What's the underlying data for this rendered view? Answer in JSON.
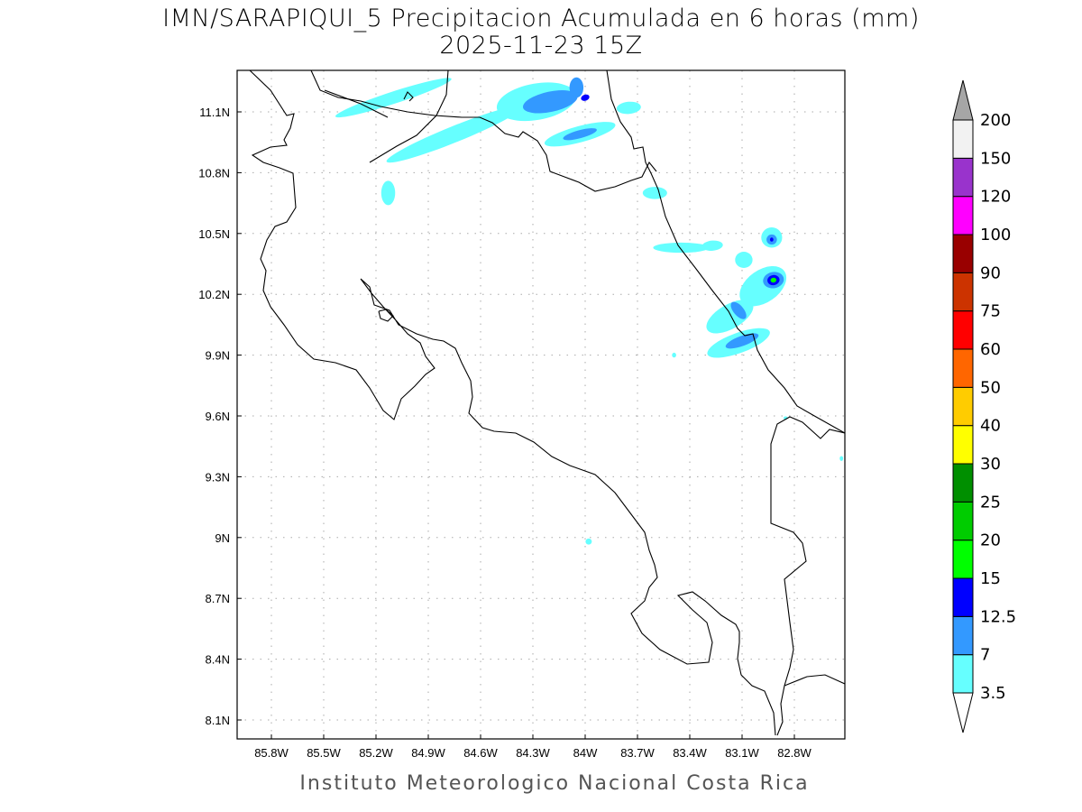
{
  "title": "IMN/SARAPIQUI_5 Precipitacion Acumulada en 6 horas (mm)",
  "subtitle": "2025-11-23 15Z",
  "credit": "Instituto Meteorologico Nacional Costa Rica",
  "map": {
    "lon_range": [
      -86.0,
      -82.52
    ],
    "lat_range": [
      8.02,
      11.3
    ],
    "lon_ticks": [
      {
        "v": -85.8,
        "label": "85.8W"
      },
      {
        "v": -85.5,
        "label": "85.5W"
      },
      {
        "v": -85.2,
        "label": "85.2W"
      },
      {
        "v": -84.9,
        "label": "84.9W"
      },
      {
        "v": -84.6,
        "label": "84.6W"
      },
      {
        "v": -84.3,
        "label": "84.3W"
      },
      {
        "v": -84.0,
        "label": "84W"
      },
      {
        "v": -83.7,
        "label": "83.7W"
      },
      {
        "v": -83.4,
        "label": "83.4W"
      },
      {
        "v": -83.1,
        "label": "83.1W"
      },
      {
        "v": -82.8,
        "label": "82.8W"
      }
    ],
    "lat_ticks": [
      {
        "v": 11.1,
        "label": "11.1N"
      },
      {
        "v": 10.8,
        "label": "10.8N"
      },
      {
        "v": 10.5,
        "label": "10.5N"
      },
      {
        "v": 10.2,
        "label": "10.2N"
      },
      {
        "v": 9.9,
        "label": "9.9N"
      },
      {
        "v": 9.6,
        "label": "9.6N"
      },
      {
        "v": 9.3,
        "label": "9.3N"
      },
      {
        "v": 9.0,
        "label": "9N"
      },
      {
        "v": 8.7,
        "label": "8.7N"
      },
      {
        "v": 8.4,
        "label": "8.4N"
      },
      {
        "v": 8.1,
        "label": "8.1N"
      }
    ]
  },
  "colorbar": {
    "levels": [
      "3.5",
      "7",
      "12.5",
      "15",
      "20",
      "25",
      "30",
      "40",
      "50",
      "60",
      "75",
      "90",
      "100",
      "120",
      "150",
      "200"
    ],
    "colors": [
      "#66ffff",
      "#3399ff",
      "#0000ff",
      "#00ff00",
      "#00cc00",
      "#008f00",
      "#ffff00",
      "#ffcc00",
      "#ff6600",
      "#ff0000",
      "#cc3300",
      "#990000",
      "#ff00ff",
      "#9933cc",
      "#f2f2f2"
    ],
    "over_color": "#a6a6a6",
    "under_color": "#ffffff"
  },
  "precip_cells": [
    {
      "lon": -85.1,
      "lat": 11.17,
      "rx": 0.35,
      "ry": 0.03,
      "rot": -18,
      "level": 0
    },
    {
      "lon": -84.75,
      "lat": 10.99,
      "rx": 0.42,
      "ry": 0.04,
      "rot": -22,
      "level": 0
    },
    {
      "lon": -85.13,
      "lat": 10.7,
      "rx": 0.04,
      "ry": 0.06,
      "rot": 0,
      "level": 0
    },
    {
      "lon": -84.28,
      "lat": 11.15,
      "rx": 0.23,
      "ry": 0.09,
      "rot": -10,
      "level": 0
    },
    {
      "lon": -84.2,
      "lat": 11.15,
      "rx": 0.16,
      "ry": 0.05,
      "rot": -12,
      "level": 1
    },
    {
      "lon": -84.0,
      "lat": 11.17,
      "rx": 0.025,
      "ry": 0.015,
      "rot": -20,
      "level": 2
    },
    {
      "lon": -84.05,
      "lat": 11.22,
      "rx": 0.04,
      "ry": 0.05,
      "rot": 0,
      "level": 1
    },
    {
      "lon": -84.03,
      "lat": 10.99,
      "rx": 0.21,
      "ry": 0.04,
      "rot": -15,
      "level": 0
    },
    {
      "lon": -84.03,
      "lat": 10.99,
      "rx": 0.1,
      "ry": 0.02,
      "rot": -15,
      "level": 1
    },
    {
      "lon": -83.75,
      "lat": 11.12,
      "rx": 0.07,
      "ry": 0.03,
      "rot": -5,
      "level": 0
    },
    {
      "lon": -83.6,
      "lat": 10.7,
      "rx": 0.07,
      "ry": 0.03,
      "rot": 0,
      "level": 0
    },
    {
      "lon": -83.45,
      "lat": 10.43,
      "rx": 0.16,
      "ry": 0.025,
      "rot": 0,
      "level": 0
    },
    {
      "lon": -83.27,
      "lat": 10.44,
      "rx": 0.06,
      "ry": 0.025,
      "rot": -5,
      "level": 0
    },
    {
      "lon": -82.93,
      "lat": 10.48,
      "rx": 0.06,
      "ry": 0.05,
      "rot": 0,
      "level": 0
    },
    {
      "lon": -82.93,
      "lat": 10.47,
      "rx": 0.03,
      "ry": 0.025,
      "rot": 0,
      "level": 1
    },
    {
      "lon": -82.93,
      "lat": 10.47,
      "rx": 0.01,
      "ry": 0.01,
      "rot": 0,
      "level": 2
    },
    {
      "lon": -83.09,
      "lat": 10.37,
      "rx": 0.05,
      "ry": 0.04,
      "rot": 0,
      "level": 0
    },
    {
      "lon": -82.98,
      "lat": 10.24,
      "rx": 0.15,
      "ry": 0.08,
      "rot": -35,
      "level": 0
    },
    {
      "lon": -82.92,
      "lat": 10.27,
      "rx": 0.06,
      "ry": 0.04,
      "rot": -10,
      "level": 1
    },
    {
      "lon": -82.92,
      "lat": 10.27,
      "rx": 0.035,
      "ry": 0.025,
      "rot": -10,
      "level": 2
    },
    {
      "lon": -82.92,
      "lat": 10.27,
      "rx": 0.017,
      "ry": 0.012,
      "rot": -10,
      "level": 3
    },
    {
      "lon": -83.17,
      "lat": 10.09,
      "rx": 0.15,
      "ry": 0.06,
      "rot": -30,
      "level": 0
    },
    {
      "lon": -83.12,
      "lat": 10.12,
      "rx": 0.06,
      "ry": 0.025,
      "rot": 50,
      "level": 1
    },
    {
      "lon": -83.12,
      "lat": 9.96,
      "rx": 0.19,
      "ry": 0.05,
      "rot": -20,
      "level": 0
    },
    {
      "lon": -83.1,
      "lat": 9.97,
      "rx": 0.1,
      "ry": 0.025,
      "rot": -20,
      "level": 1
    },
    {
      "lon": -83.49,
      "lat": 9.9,
      "rx": 0.012,
      "ry": 0.012,
      "rot": 0,
      "level": 0
    },
    {
      "lon": -83.98,
      "lat": 8.98,
      "rx": 0.018,
      "ry": 0.015,
      "rot": 0,
      "level": 0
    },
    {
      "lon": -82.85,
      "lat": 9.59,
      "rx": 0.012,
      "ry": 0.008,
      "rot": 0,
      "level": 0
    },
    {
      "lon": -82.53,
      "lat": 9.39,
      "rx": 0.01,
      "ry": 0.012,
      "rot": 0,
      "level": 0
    }
  ]
}
